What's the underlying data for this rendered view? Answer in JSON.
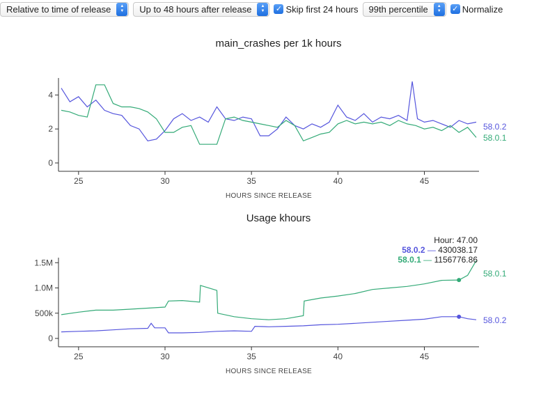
{
  "toolbar": {
    "selects": [
      {
        "name": "relative-time-select",
        "value": "Relative to time of release"
      },
      {
        "name": "hours-range-select",
        "value": "Up to 48 hours after release"
      },
      {
        "name": "percentile-select",
        "value": "99th percentile"
      }
    ],
    "checkboxes": [
      {
        "name": "skip-first-24-checkbox",
        "label": "Skip first 24 hours",
        "checked": true
      },
      {
        "name": "normalize-checkbox",
        "label": "Normalize",
        "checked": true
      }
    ]
  },
  "colors": {
    "v1": "#5555dd",
    "v2": "#33aa77"
  },
  "chart_data": [
    {
      "type": "line",
      "title": "main_crashes per 1k hours",
      "xlabel": "HOURS SINCE RELEASE",
      "ylabel": "",
      "xlim": [
        24,
        48
      ],
      "ylim": [
        0,
        5
      ],
      "xticks": [
        "25",
        "30",
        "35",
        "40",
        "45"
      ],
      "yticks": [
        "0",
        "2",
        "4"
      ],
      "series": [
        {
          "name": "58.0.2",
          "color": "#5555dd",
          "x": [
            24,
            24.5,
            25,
            25.5,
            26,
            26.5,
            27,
            27.5,
            28,
            28.5,
            29,
            29.5,
            30,
            30.5,
            31,
            31.5,
            32,
            32.5,
            33,
            33.5,
            34,
            34.5,
            35,
            35.5,
            36,
            36.5,
            37,
            37.5,
            38,
            38.5,
            39,
            39.5,
            40,
            40.5,
            41,
            41.5,
            42,
            42.5,
            43,
            43.5,
            44,
            44.3,
            44.6,
            45,
            45.5,
            46,
            46.5,
            47,
            47.5,
            48
          ],
          "y": [
            4.4,
            3.6,
            3.9,
            3.3,
            3.7,
            3.1,
            2.9,
            2.8,
            2.2,
            2.0,
            1.3,
            1.4,
            1.9,
            2.6,
            2.9,
            2.5,
            2.7,
            2.4,
            3.3,
            2.6,
            2.5,
            2.7,
            2.6,
            1.6,
            1.6,
            2.0,
            2.7,
            2.2,
            2.0,
            2.3,
            2.1,
            2.4,
            3.4,
            2.7,
            2.5,
            2.9,
            2.4,
            2.7,
            2.6,
            2.8,
            2.5,
            4.8,
            2.6,
            2.4,
            2.5,
            2.3,
            2.1,
            2.5,
            2.3,
            2.4
          ]
        },
        {
          "name": "58.0.1",
          "color": "#33aa77",
          "x": [
            24,
            24.5,
            25,
            25.5,
            26,
            26.5,
            27,
            27.5,
            28,
            28.5,
            29,
            29.5,
            30,
            30.5,
            31,
            31.5,
            32,
            32.5,
            33,
            33.5,
            34,
            34.5,
            35,
            35.5,
            36,
            36.5,
            37,
            37.5,
            38,
            38.5,
            39,
            39.5,
            40,
            40.5,
            41,
            41.5,
            42,
            42.5,
            43,
            43.5,
            44,
            44.5,
            45,
            45.5,
            46,
            46.5,
            47,
            47.5,
            48
          ],
          "y": [
            3.1,
            3.0,
            2.8,
            2.7,
            4.6,
            4.6,
            3.5,
            3.3,
            3.3,
            3.2,
            3.0,
            2.6,
            1.8,
            1.8,
            2.1,
            2.2,
            1.1,
            1.1,
            1.1,
            2.6,
            2.7,
            2.5,
            2.4,
            2.3,
            2.2,
            2.1,
            2.5,
            2.2,
            1.3,
            1.5,
            1.7,
            1.8,
            2.3,
            2.5,
            2.3,
            2.4,
            2.3,
            2.4,
            2.2,
            2.5,
            2.3,
            2.2,
            2.0,
            2.1,
            1.9,
            2.2,
            1.8,
            2.1,
            1.5
          ]
        }
      ]
    },
    {
      "type": "line",
      "title": "Usage khours",
      "xlabel": "HOURS SINCE RELEASE",
      "ylabel": "",
      "xlim": [
        24,
        48
      ],
      "ylim": [
        0,
        1600000
      ],
      "xticks": [
        "25",
        "30",
        "35",
        "40",
        "45"
      ],
      "yticks": [
        "0",
        "500k",
        "1.0M",
        "1.5M"
      ],
      "series": [
        {
          "name": "58.0.2",
          "color": "#5555dd",
          "x": [
            24,
            25,
            26,
            27,
            28,
            29,
            29.2,
            29.4,
            30,
            30.2,
            31,
            32,
            33,
            34,
            35,
            35.2,
            36,
            37,
            38,
            39,
            40,
            41,
            42,
            43,
            44,
            45,
            46,
            47,
            47.5,
            48
          ],
          "y": [
            130000,
            140000,
            150000,
            170000,
            190000,
            200000,
            300000,
            210000,
            210000,
            110000,
            110000,
            120000,
            140000,
            150000,
            140000,
            240000,
            230000,
            240000,
            250000,
            270000,
            280000,
            300000,
            320000,
            340000,
            360000,
            380000,
            430000,
            430038.17,
            390000,
            370000
          ]
        },
        {
          "name": "58.0.1",
          "color": "#33aa77",
          "x": [
            24,
            25,
            26,
            27,
            28,
            29,
            30,
            30.2,
            31,
            32,
            32.05,
            33,
            33.05,
            34,
            35,
            36,
            37,
            38,
            38.05,
            39,
            40,
            41,
            42,
            43,
            44,
            45,
            46,
            47,
            47.5,
            48
          ],
          "y": [
            470000,
            520000,
            560000,
            560000,
            580000,
            600000,
            620000,
            740000,
            750000,
            720000,
            1050000,
            950000,
            500000,
            430000,
            390000,
            370000,
            390000,
            450000,
            740000,
            800000,
            840000,
            890000,
            970000,
            1000000,
            1030000,
            1080000,
            1150000,
            1156776.86,
            1250000,
            1540000
          ]
        }
      ],
      "tooltip": {
        "hour_label": "Hour: 47.00",
        "rows": [
          {
            "version": "58.0.2",
            "value": "430038.17",
            "color": "#5555dd"
          },
          {
            "version": "58.0.1",
            "value": "1156776.86",
            "color": "#33aa77"
          }
        ],
        "hover_x": 47
      }
    }
  ]
}
